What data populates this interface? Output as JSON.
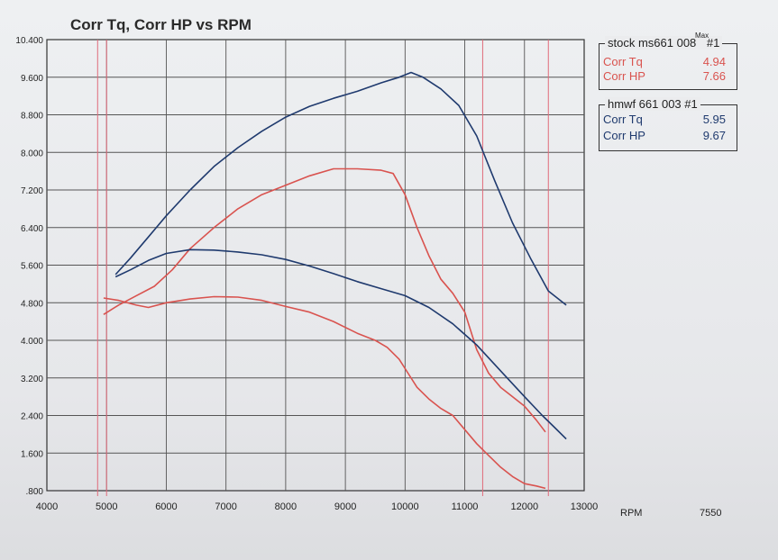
{
  "chart_data": {
    "type": "line",
    "title": "Corr Tq, Corr HP vs RPM",
    "xlabel": "RPM",
    "x_extra_label": "7550",
    "xlim": [
      4000,
      13000
    ],
    "ylim": [
      0.8,
      10.4
    ],
    "x_ticks": [
      "4000",
      "5000",
      "6000",
      "7000",
      "8000",
      "9000",
      "10000",
      "11000",
      "12000",
      "13000"
    ],
    "y_ticks": [
      ".800",
      "1.600",
      "2.400",
      "3.200",
      "4.000",
      "4.800",
      "5.600",
      "6.400",
      "7.200",
      "8.000",
      "8.800",
      "9.600",
      "10.400"
    ],
    "markers_rpm": [
      4850,
      5000,
      11300,
      12400
    ],
    "series": [
      {
        "name": "stock ms661 008 #1 Corr Tq",
        "color": "#d9534f",
        "x": [
          4950,
          5200,
          5500,
          5700,
          6000,
          6400,
          6800,
          7200,
          7600,
          8000,
          8400,
          8800,
          9200,
          9500,
          9700,
          9900,
          10050,
          10200,
          10400,
          10600,
          10800,
          11000,
          11200,
          11400,
          11600,
          11800,
          12000,
          12200,
          12350
        ],
        "y": [
          4.9,
          4.85,
          4.75,
          4.7,
          4.8,
          4.88,
          4.93,
          4.92,
          4.85,
          4.72,
          4.6,
          4.4,
          4.15,
          4.0,
          3.85,
          3.6,
          3.3,
          3.0,
          2.75,
          2.55,
          2.4,
          2.1,
          1.8,
          1.55,
          1.3,
          1.1,
          0.95,
          0.9,
          0.85
        ]
      },
      {
        "name": "stock ms661 008 #1 Corr HP",
        "color": "#d9534f",
        "x": [
          4950,
          5200,
          5500,
          5800,
          6100,
          6400,
          6800,
          7200,
          7600,
          8000,
          8400,
          8800,
          9200,
          9600,
          9800,
          10000,
          10200,
          10400,
          10600,
          10800,
          11000,
          11200,
          11400,
          11600,
          11800,
          12000,
          12200,
          12350
        ],
        "y": [
          4.55,
          4.75,
          4.95,
          5.15,
          5.5,
          5.95,
          6.4,
          6.8,
          7.1,
          7.3,
          7.5,
          7.65,
          7.65,
          7.62,
          7.55,
          7.1,
          6.4,
          5.8,
          5.3,
          5.0,
          4.6,
          3.8,
          3.3,
          3.0,
          2.8,
          2.6,
          2.3,
          2.05
        ]
      },
      {
        "name": "hmwf 661 003 #1 Corr Tq",
        "color": "#1f3a6e",
        "x": [
          5150,
          5400,
          5700,
          6000,
          6400,
          6800,
          7200,
          7600,
          8000,
          8400,
          8800,
          9200,
          9600,
          10000,
          10400,
          10800,
          11200,
          11600,
          12000,
          12300,
          12500,
          12700
        ],
        "y": [
          5.35,
          5.5,
          5.7,
          5.85,
          5.93,
          5.92,
          5.88,
          5.82,
          5.72,
          5.58,
          5.42,
          5.25,
          5.1,
          4.95,
          4.7,
          4.35,
          3.9,
          3.35,
          2.8,
          2.4,
          2.15,
          1.9
        ]
      },
      {
        "name": "hmwf 661 003 #1 Corr HP",
        "color": "#1f3a6e",
        "x": [
          5150,
          5400,
          5700,
          6000,
          6400,
          6800,
          7200,
          7600,
          8000,
          8400,
          8800,
          9200,
          9600,
          9900,
          10100,
          10300,
          10600,
          10900,
          11200,
          11500,
          11800,
          12100,
          12400,
          12700
        ],
        "y": [
          5.4,
          5.75,
          6.2,
          6.65,
          7.2,
          7.7,
          8.1,
          8.45,
          8.75,
          8.98,
          9.15,
          9.3,
          9.48,
          9.6,
          9.7,
          9.6,
          9.35,
          9.0,
          8.35,
          7.4,
          6.5,
          5.75,
          5.05,
          4.75
        ]
      }
    ]
  },
  "legend": {
    "box1": {
      "header": "stock ms661 008",
      "max_tag": "Max",
      "run": "#1",
      "rows": [
        {
          "label": "Corr Tq",
          "value": "4.94",
          "color": "#d9534f"
        },
        {
          "label": "Corr HP",
          "value": "7.66",
          "color": "#d9534f"
        }
      ]
    },
    "box2": {
      "header": "hmwf 661  003  #1",
      "rows": [
        {
          "label": "Corr Tq",
          "value": "5.95",
          "color": "#1f3a6e"
        },
        {
          "label": "Corr HP",
          "value": "9.67",
          "color": "#1f3a6e"
        }
      ]
    }
  }
}
